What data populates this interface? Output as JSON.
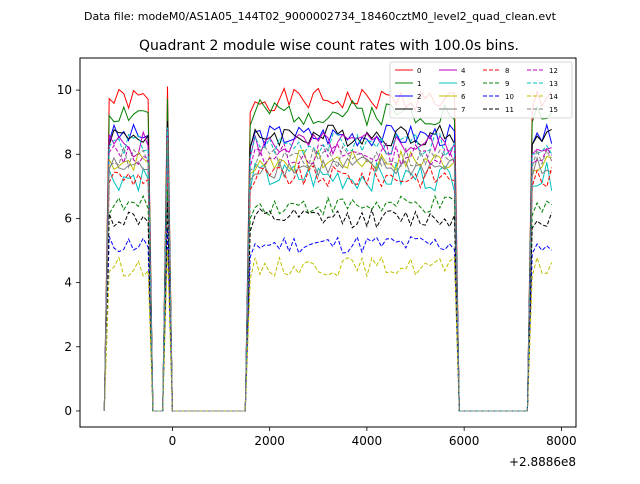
{
  "figure": {
    "suptitle": "Data file: modeM0/AS1A05_144T02_9000002734_18460cztM0_level2_quad_clean.evt",
    "offset_label": "+2.8886e8"
  },
  "chart_data": {
    "type": "line",
    "title": "Quadrant 2 module wise count rates with 100.0s bins.",
    "xlabel": "",
    "ylabel": "",
    "xlim": [
      -1900,
      8300
    ],
    "ylim": [
      -0.5,
      11.0
    ],
    "xticks": [
      0,
      2000,
      4000,
      6000,
      8000
    ],
    "yticks": [
      0,
      2,
      4,
      6,
      8,
      10
    ],
    "x_offset": 288860000,
    "legend_position": "top-right",
    "segments": [
      {
        "x_start": -1350,
        "x_end": -450
      },
      {
        "x_start": -150,
        "x_end": -50
      },
      {
        "x_start": 1550,
        "x_end": 5850
      },
      {
        "x_start": 7350,
        "x_end": 7850
      }
    ],
    "series": [
      {
        "name": "0",
        "color": "#ff0000",
        "dash": "solid",
        "level": 9.7,
        "amp": 0.35,
        "seed": 1
      },
      {
        "name": "1",
        "color": "#008000",
        "dash": "solid",
        "level": 9.3,
        "amp": 0.4,
        "seed": 2
      },
      {
        "name": "2",
        "color": "#0000ff",
        "dash": "solid",
        "level": 8.6,
        "amp": 0.35,
        "seed": 3
      },
      {
        "name": "3",
        "color": "#000000",
        "dash": "solid",
        "level": 8.6,
        "amp": 0.35,
        "seed": 4
      },
      {
        "name": "4",
        "color": "#bf00bf",
        "dash": "solid",
        "level": 8.3,
        "amp": 0.4,
        "seed": 5
      },
      {
        "name": "5",
        "color": "#00bfbf",
        "dash": "solid",
        "level": 7.3,
        "amp": 0.45,
        "seed": 6
      },
      {
        "name": "6",
        "color": "#bfbf00",
        "dash": "solid",
        "level": 7.8,
        "amp": 0.35,
        "seed": 7
      },
      {
        "name": "7",
        "color": "#808080",
        "dash": "solid",
        "level": 7.6,
        "amp": 0.35,
        "seed": 8
      },
      {
        "name": "8",
        "color": "#ff0000",
        "dash": "dashed",
        "level": 7.3,
        "amp": 0.35,
        "seed": 9
      },
      {
        "name": "9",
        "color": "#008000",
        "dash": "dashed",
        "level": 6.4,
        "amp": 0.3,
        "seed": 10
      },
      {
        "name": "10",
        "color": "#0000ff",
        "dash": "dashed",
        "level": 5.2,
        "amp": 0.3,
        "seed": 11
      },
      {
        "name": "11",
        "color": "#000000",
        "dash": "dashed",
        "level": 6.0,
        "amp": 0.3,
        "seed": 12
      },
      {
        "name": "12",
        "color": "#bf00bf",
        "dash": "dashed",
        "level": 8.0,
        "amp": 0.35,
        "seed": 13
      },
      {
        "name": "13",
        "color": "#00bfbf",
        "dash": "dashed",
        "level": 8.3,
        "amp": 0.35,
        "seed": 14
      },
      {
        "name": "14",
        "color": "#bfbf00",
        "dash": "dashed",
        "level": 4.5,
        "amp": 0.3,
        "seed": 15
      },
      {
        "name": "15",
        "color": "#808080",
        "dash": "dashed",
        "level": 7.9,
        "amp": 0.35,
        "seed": 16
      }
    ]
  }
}
